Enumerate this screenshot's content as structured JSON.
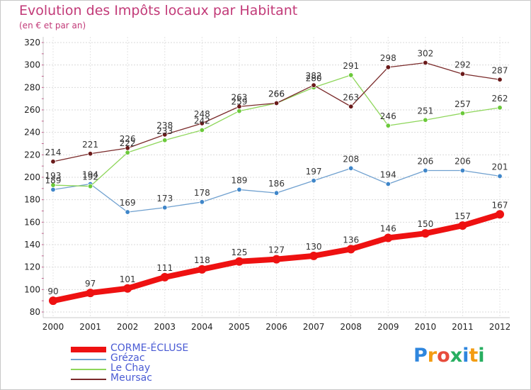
{
  "title": "Evolution des Impôts locaux par Habitant",
  "subtitle": "(en € et par an)",
  "logo": {
    "letters": [
      "P",
      "r",
      "o",
      "x",
      "i",
      "t",
      "i"
    ],
    "colors": [
      "#2e86de",
      "#f39c12",
      "#e74c3c",
      "#27ae60",
      "#2e86de",
      "#f39c12",
      "#27ae60"
    ]
  },
  "chart_data": {
    "type": "line",
    "title": "Evolution des Impôts locaux par Habitant",
    "subtitle": "(en € et par an)",
    "categories": [
      "2000",
      "2001",
      "2002",
      "2003",
      "2004",
      "2005",
      "2006",
      "2007",
      "2008",
      "2009",
      "2010",
      "2011",
      "2012"
    ],
    "ylim": [
      80,
      320
    ],
    "yticks": [
      80,
      100,
      120,
      140,
      160,
      180,
      200,
      220,
      240,
      260,
      280,
      300,
      320
    ],
    "grid": true,
    "legend_position": "bottom-left",
    "series": [
      {
        "name": "CORME-ÉCLUSE",
        "color": "#ee1111",
        "marker": "#ee1111",
        "emphasis": true,
        "values": [
          90,
          97,
          101,
          111,
          118,
          125,
          127,
          130,
          136,
          146,
          150,
          157,
          167
        ]
      },
      {
        "name": "Grézac",
        "color": "#6fa0cf",
        "marker": "#3f86c9",
        "values": [
          189,
          194,
          169,
          173,
          178,
          189,
          186,
          197,
          208,
          194,
          206,
          206,
          201
        ]
      },
      {
        "name": "Le Chay",
        "color": "#8ed65a",
        "marker": "#6bc93a",
        "values": [
          193,
          192,
          222,
          233,
          242,
          259,
          266,
          280,
          291,
          246,
          251,
          257,
          262
        ]
      },
      {
        "name": "Meursac",
        "color": "#7a2a2a",
        "marker": "#6a1a1a",
        "values": [
          214,
          221,
          226,
          238,
          248,
          263,
          266,
          282,
          263,
          298,
          302,
          292,
          287
        ]
      }
    ]
  }
}
